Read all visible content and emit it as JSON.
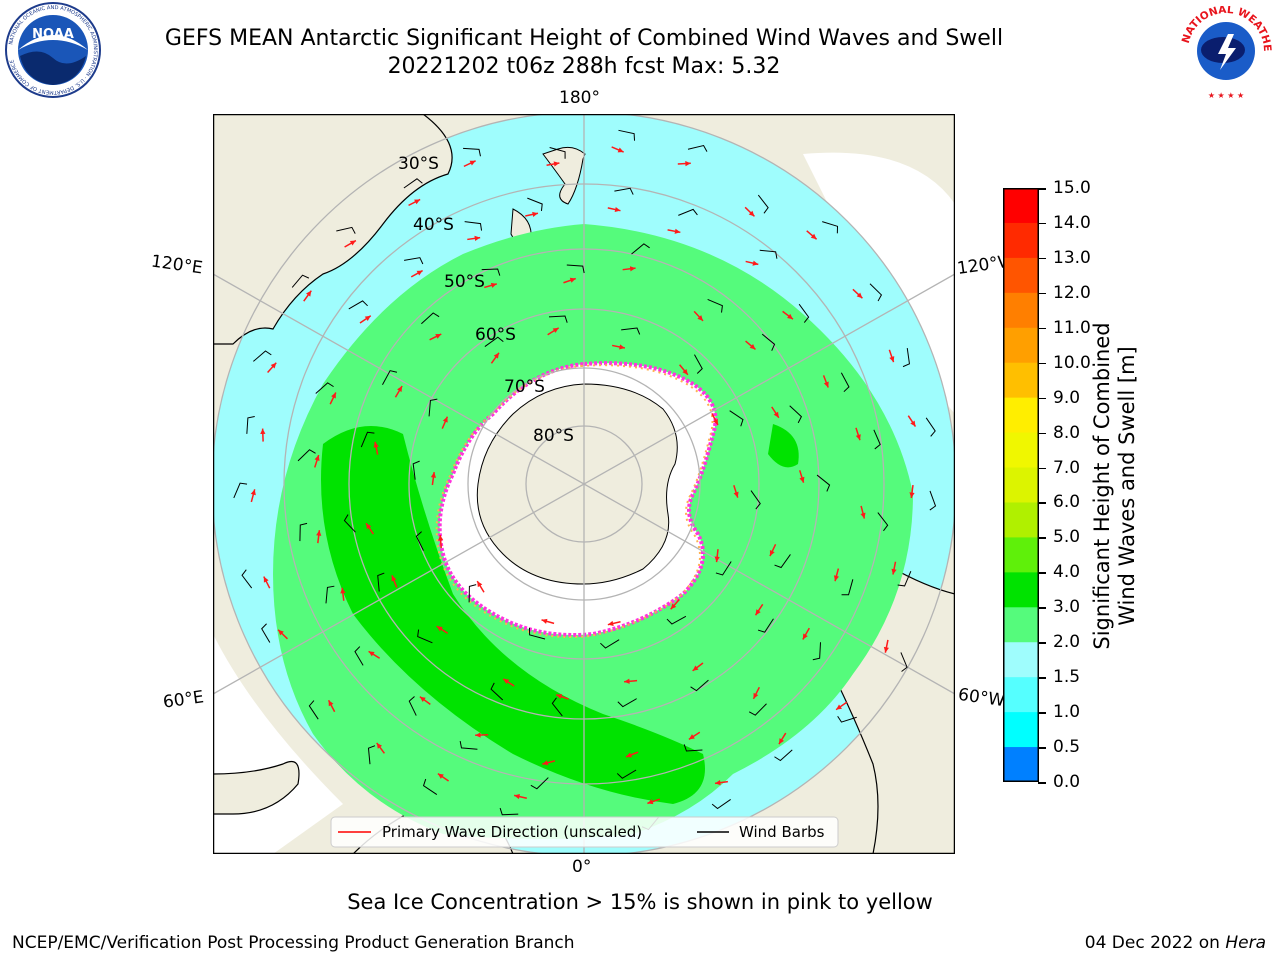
{
  "header": {
    "title_line1": "GEFS MEAN Antarctic Significant Height of Combined Wind Waves and Swell",
    "title_line2": "20221202 t06z 288h fcst   Max: 5.32"
  },
  "logos": {
    "noaa_text": "NOAA",
    "noaa_ring_text": "NATIONAL OCEANIC AND ATMOSPHERIC ADMINISTRATION · U.S. DEPARTMENT OF COMMERCE",
    "nws_ring_text": "NATIONAL WEATHER SERVICE"
  },
  "map": {
    "projection": "south-polar-stereographic",
    "longitude_labels": {
      "top": "180°",
      "bottom": "0°",
      "upper_left": "120°E",
      "lower_left": "60°E",
      "upper_right": "120°W",
      "lower_right": "60°W"
    },
    "latitude_labels": [
      "30°S",
      "40°S",
      "50°S",
      "60°S",
      "70°S",
      "80°S"
    ],
    "legend": {
      "wave_direction": "Primary Wave Direction (unscaled)",
      "wind_barbs": "Wind Barbs"
    },
    "colors": {
      "land": "#efedde",
      "ice": "#ffffff",
      "ocean_low": "#9ffdfd",
      "ocean_mid": "#55fb7c",
      "ocean_high": "#00e300",
      "arrow": "#ff1a1a"
    }
  },
  "colorbar": {
    "label_line1": "Significant Height of Combined",
    "label_line2": "Wind Waves and Swell [m]",
    "ticks": [
      "15.0",
      "14.0",
      "13.0",
      "12.0",
      "11.0",
      "10.0",
      "9.0",
      "8.0",
      "7.0",
      "6.0",
      "5.0",
      "4.0",
      "3.0",
      "2.0",
      "1.5",
      "1.0",
      "0.5",
      "0.0"
    ],
    "colors_top_to_bottom": [
      "#ff0000",
      "#ff2a00",
      "#ff5500",
      "#ff7f00",
      "#ff9f00",
      "#ffbf00",
      "#ffee00",
      "#f0f700",
      "#dcf400",
      "#b0f000",
      "#5ff00a",
      "#00e300",
      "#55fb7c",
      "#9ffdfd",
      "#55ffff",
      "#00ffff",
      "#0080ff",
      "#0000ff"
    ]
  },
  "caption": "Sea Ice Concentration > 15% is shown in pink to yellow",
  "footer": {
    "left": "NCEP/EMC/Verification Post Processing Product Generation Branch",
    "right_prefix": "04 Dec 2022 on ",
    "right_italic": "Hera"
  }
}
